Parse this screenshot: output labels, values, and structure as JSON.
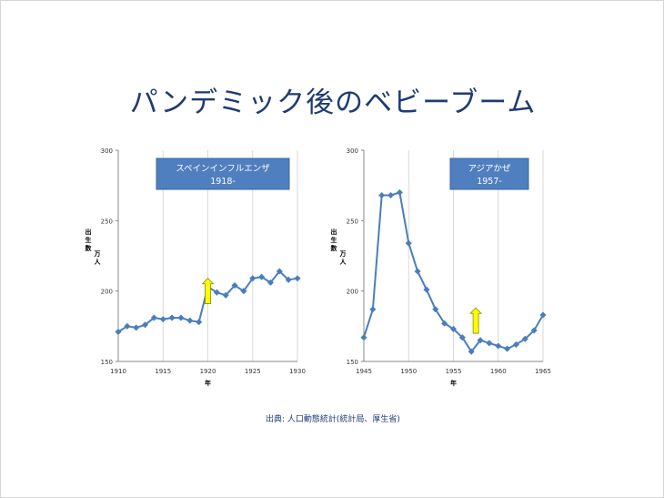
{
  "slide": {
    "title": "パンデミック後のベビーブーム",
    "source": "出典: 人口動態統計(統計局、厚生省)"
  },
  "colors": {
    "line": "#4a7ebb",
    "grid": "#d9d9d9",
    "label_box": "#4f7fbf",
    "arrow": "#ffff00",
    "title": "#1f3b73"
  },
  "chart_data": [
    {
      "type": "line",
      "ylabel": "出生数 万人",
      "xlabel": "年",
      "xlim": [
        1910,
        1930
      ],
      "ylim": [
        150,
        300
      ],
      "x_ticks": [
        1910,
        1915,
        1920,
        1925,
        1930
      ],
      "y_ticks": [
        150,
        200,
        250,
        300
      ],
      "grid": "vertical",
      "annotation": {
        "line1": "スペインインフルエンザ",
        "line2": "1918-"
      },
      "arrow_at": {
        "x": 1920,
        "y_from": 191,
        "y_to": 209
      },
      "series": [
        {
          "x": [
            1910,
            1911,
            1912,
            1913,
            1914,
            1915,
            1916,
            1917,
            1918,
            1919,
            1920,
            1921,
            1922,
            1923,
            1924,
            1925,
            1926,
            1927,
            1928,
            1929,
            1930
          ],
          "values": [
            171,
            175,
            174,
            176,
            181,
            180,
            181,
            181,
            179,
            178,
            203,
            199,
            197,
            204,
            200,
            209,
            210,
            206,
            214,
            208,
            209
          ]
        }
      ]
    },
    {
      "type": "line",
      "ylabel": "出生数 万人",
      "xlabel": "年",
      "xlim": [
        1945,
        1965
      ],
      "ylim": [
        150,
        300
      ],
      "x_ticks": [
        1945,
        1950,
        1955,
        1960,
        1965
      ],
      "y_ticks": [
        150,
        200,
        250,
        300
      ],
      "grid": "vertical",
      "annotation": {
        "line1": "アジアかぜ",
        "line2": "1957-"
      },
      "arrow_at": {
        "x": 1957.5,
        "y_from": 170,
        "y_to": 188
      },
      "series": [
        {
          "x": [
            1945,
            1946,
            1947,
            1948,
            1949,
            1950,
            1951,
            1952,
            1953,
            1954,
            1955,
            1956,
            1957,
            1958,
            1959,
            1960,
            1961,
            1962,
            1963,
            1964,
            1965
          ],
          "values": [
            167,
            187,
            268,
            268,
            270,
            234,
            214,
            201,
            187,
            177,
            173,
            167,
            157,
            165,
            163,
            161,
            159,
            162,
            166,
            172,
            183
          ]
        }
      ]
    }
  ]
}
